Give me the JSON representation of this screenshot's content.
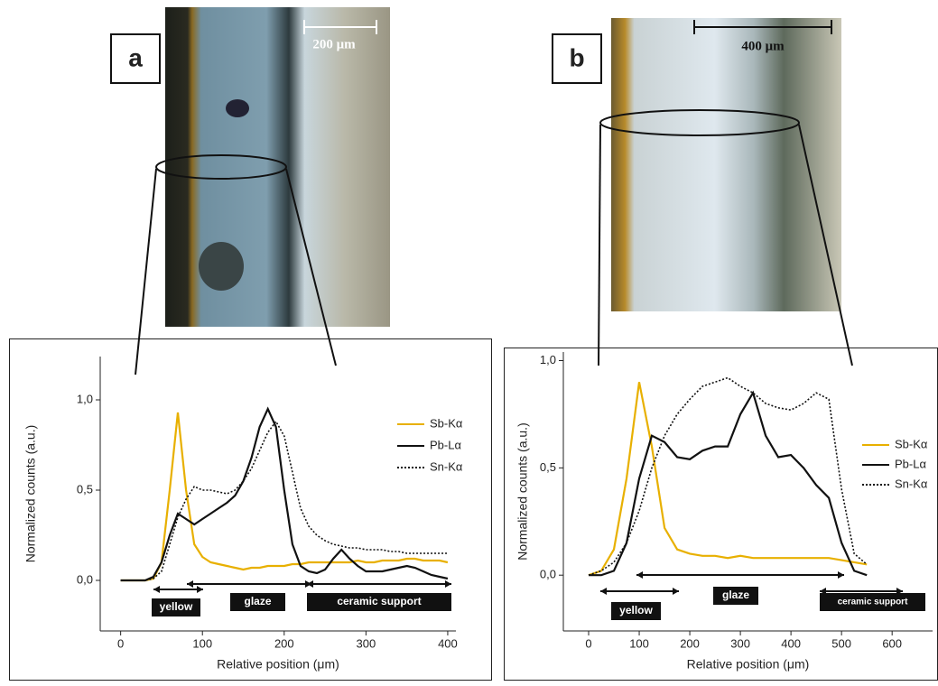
{
  "chart_data": [
    {
      "type": "line",
      "panel_label": "a",
      "scale_bar": "200 μm",
      "x_label": "Relative position (μm)",
      "y_label": "Normalized counts (a.u.)",
      "x": [
        0,
        10,
        20,
        30,
        40,
        50,
        60,
        70,
        80,
        90,
        100,
        110,
        120,
        130,
        140,
        150,
        160,
        170,
        180,
        190,
        200,
        210,
        220,
        230,
        240,
        250,
        260,
        270,
        280,
        290,
        300,
        310,
        320,
        330,
        340,
        350,
        360,
        370,
        380,
        390,
        400
      ],
      "series": [
        {
          "name": "Sb-Kα",
          "color": "#e8b000",
          "style": "solid",
          "values": [
            0,
            0,
            0,
            0,
            0.01,
            0.1,
            0.5,
            0.93,
            0.5,
            0.2,
            0.13,
            0.1,
            0.09,
            0.08,
            0.07,
            0.06,
            0.07,
            0.07,
            0.08,
            0.08,
            0.08,
            0.09,
            0.09,
            0.1,
            0.1,
            0.1,
            0.1,
            0.1,
            0.1,
            0.11,
            0.1,
            0.1,
            0.11,
            0.11,
            0.11,
            0.12,
            0.12,
            0.11,
            0.11,
            0.11,
            0.1
          ]
        },
        {
          "name": "Pb-Lα",
          "color": "#111111",
          "style": "solid",
          "values": [
            0,
            0,
            0,
            0,
            0.02,
            0.1,
            0.25,
            0.37,
            0.34,
            0.31,
            0.34,
            0.37,
            0.4,
            0.43,
            0.47,
            0.55,
            0.68,
            0.85,
            0.95,
            0.85,
            0.5,
            0.2,
            0.08,
            0.05,
            0.04,
            0.06,
            0.12,
            0.17,
            0.12,
            0.08,
            0.05,
            0.05,
            0.05,
            0.06,
            0.07,
            0.08,
            0.07,
            0.05,
            0.03,
            0.02,
            0.01
          ]
        },
        {
          "name": "Sn-Kα",
          "color": "#111111",
          "style": "dotted",
          "values": [
            0,
            0,
            0,
            0,
            0.01,
            0.05,
            0.2,
            0.35,
            0.45,
            0.52,
            0.5,
            0.5,
            0.49,
            0.48,
            0.5,
            0.55,
            0.62,
            0.72,
            0.82,
            0.88,
            0.8,
            0.6,
            0.4,
            0.3,
            0.25,
            0.22,
            0.2,
            0.19,
            0.18,
            0.18,
            0.17,
            0.17,
            0.17,
            0.16,
            0.16,
            0.15,
            0.15,
            0.15,
            0.15,
            0.15,
            0.15
          ]
        }
      ],
      "annotations": [
        "yellow",
        "glaze",
        "ceramic support"
      ],
      "xlim": [
        -25,
        410
      ],
      "xticks": [
        0,
        100,
        200,
        300,
        400
      ],
      "ylim": [
        -0.28,
        1.24
      ],
      "yticks": [
        {
          "value": 0,
          "label": "0,0"
        },
        {
          "value": 0.5,
          "label": "0,5"
        },
        {
          "value": 1,
          "label": "1,0"
        }
      ],
      "legend": "right"
    },
    {
      "type": "line",
      "panel_label": "b",
      "scale_bar": "400 μm",
      "x_label": "Relative position (μm)",
      "y_label": "Normalized counts (a.u.)",
      "x": [
        0,
        25,
        50,
        75,
        100,
        125,
        150,
        175,
        200,
        225,
        250,
        275,
        300,
        325,
        350,
        375,
        400,
        425,
        450,
        475,
        500,
        525,
        550
      ],
      "series": [
        {
          "name": "Sb-Kα",
          "color": "#e8b000",
          "style": "solid",
          "values": [
            0,
            0.02,
            0.12,
            0.45,
            0.9,
            0.6,
            0.22,
            0.12,
            0.1,
            0.09,
            0.09,
            0.08,
            0.09,
            0.08,
            0.08,
            0.08,
            0.08,
            0.08,
            0.08,
            0.08,
            0.07,
            0.06,
            0.05
          ]
        },
        {
          "name": "Pb-Lα",
          "color": "#111111",
          "style": "solid",
          "values": [
            0,
            0,
            0.02,
            0.15,
            0.45,
            0.65,
            0.62,
            0.55,
            0.54,
            0.58,
            0.6,
            0.6,
            0.75,
            0.85,
            0.65,
            0.55,
            0.56,
            0.5,
            0.42,
            0.36,
            0.15,
            0.02,
            0
          ]
        },
        {
          "name": "Sn-Kα",
          "color": "#111111",
          "style": "dotted",
          "values": [
            0,
            0.02,
            0.06,
            0.15,
            0.3,
            0.5,
            0.65,
            0.75,
            0.82,
            0.88,
            0.9,
            0.92,
            0.88,
            0.85,
            0.8,
            0.78,
            0.77,
            0.8,
            0.85,
            0.82,
            0.4,
            0.1,
            0.05
          ]
        }
      ],
      "annotations": [
        "yellow",
        "glaze",
        "ceramic support"
      ],
      "xlim": [
        -50,
        680
      ],
      "xticks": [
        0,
        100,
        200,
        300,
        400,
        500,
        600
      ],
      "ylim": [
        -0.26,
        1.04
      ],
      "yticks": [
        {
          "value": 0,
          "label": "0,0"
        },
        {
          "value": 0.5,
          "label": "0,5"
        },
        {
          "value": 1,
          "label": "1,0"
        }
      ],
      "legend": "right"
    }
  ]
}
